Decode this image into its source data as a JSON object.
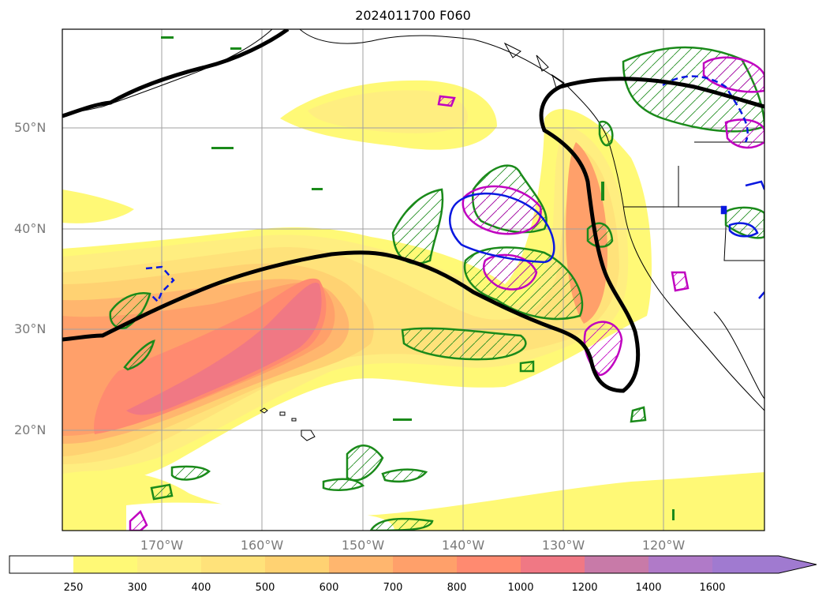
{
  "title": "2024011700 F060",
  "map": {
    "lat_labels": [
      "50°N",
      "40°N",
      "30°N",
      "20°N"
    ],
    "lon_labels": [
      "170°W",
      "160°W",
      "150°W",
      "140°W",
      "130°W",
      "120°W"
    ]
  },
  "colorbar": {
    "ticks": [
      "250",
      "300",
      "400",
      "500",
      "600",
      "700",
      "800",
      "1000",
      "1200",
      "1400",
      "1600"
    ],
    "colors": [
      "#ffffff",
      "#fff976",
      "#ffee80",
      "#ffe27a",
      "#ffd272",
      "#ffb66e",
      "#ffa06a",
      "#ff8a70",
      "#f07884",
      "#c87aa8",
      "#b07ac8",
      "#a07ad0"
    ],
    "extend": "max"
  },
  "colors": {
    "jet_line": "#000000",
    "green_contour": "#1a8a1a",
    "magenta_contour": "#c000c0",
    "blue_contour": "#0a18e0",
    "coast": "#000000",
    "grid": "#a0a0a0"
  }
}
